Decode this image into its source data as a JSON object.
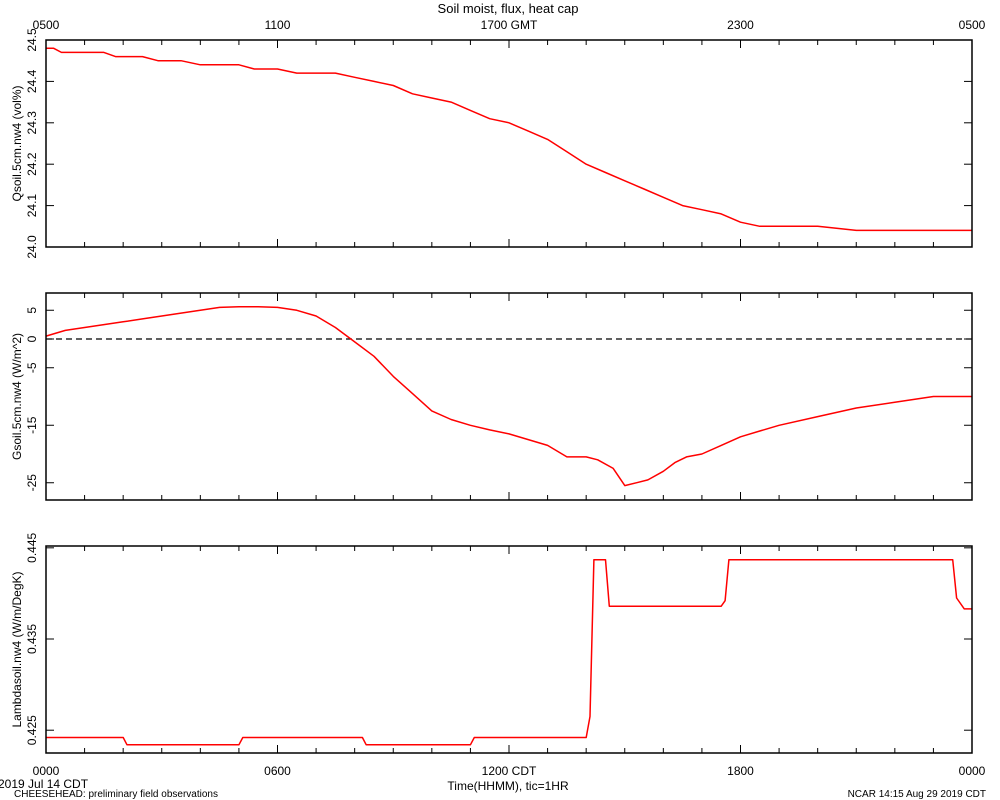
{
  "title": "Soil moist, flux, heat cap",
  "top_axis_ticks": [
    "0500",
    "1100",
    "1700 GMT",
    "2300",
    "0500"
  ],
  "bottom_axis_ticks": [
    "0000",
    "0600",
    "1200 CDT",
    "1800",
    "0000"
  ],
  "xlabel": "Time(HHMM), tic=1HR",
  "date_label": "2019 Jul 14 CDT",
  "footer_left": "CHEESEHEAD: preliminary field observations",
  "footer_right": "NCAR 14:15 Aug 29 2019 CDT",
  "line_color": "#ff0000",
  "chart_data": [
    {
      "type": "line",
      "ylabel": "Qsoil.5cm.nw4 (vol%)",
      "ylim": [
        24.0,
        24.5
      ],
      "y_ticks": [
        "24.0",
        "24.1",
        "24.2",
        "24.3",
        "24.4",
        "24.5"
      ],
      "x_hours_cdt": [
        0,
        0.2,
        0.4,
        0.7,
        1.5,
        1.8,
        2.0,
        2.5,
        2.9,
        3.5,
        4.0,
        5.0,
        5.4,
        6.0,
        6.5,
        7.5,
        8.0,
        8.5,
        9.0,
        9.5,
        10.0,
        10.5,
        11.0,
        11.5,
        12.0,
        12.5,
        13.0,
        13.5,
        14.0,
        14.5,
        15.0,
        15.5,
        16.0,
        16.5,
        17.0,
        17.5,
        18.0,
        18.5,
        19.0,
        19.5,
        20.0,
        21.0,
        22.0,
        23.0,
        23.5,
        24.0
      ],
      "values": [
        24.48,
        24.48,
        24.47,
        24.47,
        24.47,
        24.46,
        24.46,
        24.46,
        24.45,
        24.45,
        24.44,
        24.44,
        24.43,
        24.43,
        24.42,
        24.42,
        24.41,
        24.4,
        24.39,
        24.37,
        24.36,
        24.35,
        24.33,
        24.31,
        24.3,
        24.28,
        24.26,
        24.23,
        24.2,
        24.18,
        24.16,
        24.14,
        24.12,
        24.1,
        24.09,
        24.08,
        24.06,
        24.05,
        24.05,
        24.05,
        24.05,
        24.04,
        24.04,
        24.04,
        24.04,
        24.04
      ]
    },
    {
      "type": "line",
      "ylabel": "Gsoil.5cm.nw4 (W/m^2)",
      "ylim": [
        -28,
        8
      ],
      "y_ticks": [
        "5",
        "0",
        "-5",
        "-15",
        "-25"
      ],
      "zero_reference_line": true,
      "x_hours_cdt": [
        0,
        0.5,
        1.0,
        1.5,
        2.0,
        2.5,
        3.0,
        3.5,
        4.0,
        4.5,
        5.0,
        5.5,
        6.0,
        6.5,
        7.0,
        7.5,
        8.0,
        8.5,
        9.0,
        9.5,
        10.0,
        10.5,
        11.0,
        11.5,
        12.0,
        12.5,
        13.0,
        13.5,
        14.0,
        14.3,
        14.7,
        15.0,
        15.3,
        15.6,
        16.0,
        16.3,
        16.6,
        17.0,
        17.5,
        18.0,
        18.5,
        19.0,
        20.0,
        21.0,
        22.0,
        23.0,
        23.5,
        24.0
      ],
      "values": [
        0.5,
        1.5,
        2.0,
        2.5,
        3.0,
        3.5,
        4.0,
        4.5,
        5.0,
        5.5,
        5.6,
        5.6,
        5.5,
        5.0,
        4.0,
        2.0,
        -0.5,
        -3.0,
        -6.5,
        -9.5,
        -12.5,
        -14.0,
        -15.0,
        -15.8,
        -16.5,
        -17.5,
        -18.5,
        -20.5,
        -20.5,
        -21.0,
        -22.5,
        -25.5,
        -25.0,
        -24.5,
        -23.0,
        -21.5,
        -20.5,
        -20.0,
        -18.5,
        -17.0,
        -16.0,
        -15.0,
        -13.5,
        -12.0,
        -11.0,
        -10.0,
        -10.0,
        -10.0
      ]
    },
    {
      "type": "line",
      "ylabel": "Lambdasoil.nw4 (W/m/DegK)",
      "ylim": [
        0.4225,
        0.4452
      ],
      "y_ticks": [
        "0.425",
        "0.435",
        "0.445"
      ],
      "x_hours_cdt": [
        0,
        2.0,
        2.1,
        5.0,
        5.1,
        8.2,
        8.3,
        11.0,
        11.1,
        14.0,
        14.1,
        14.2,
        14.5,
        14.6,
        17.5,
        17.6,
        17.7,
        23.5,
        23.6,
        23.8,
        24.0
      ],
      "values": [
        0.4242,
        0.4242,
        0.4234,
        0.4234,
        0.4242,
        0.4242,
        0.4234,
        0.4234,
        0.4242,
        0.4242,
        0.4265,
        0.4437,
        0.4437,
        0.4386,
        0.4386,
        0.4392,
        0.4437,
        0.4437,
        0.4395,
        0.4383,
        0.4383
      ]
    }
  ]
}
